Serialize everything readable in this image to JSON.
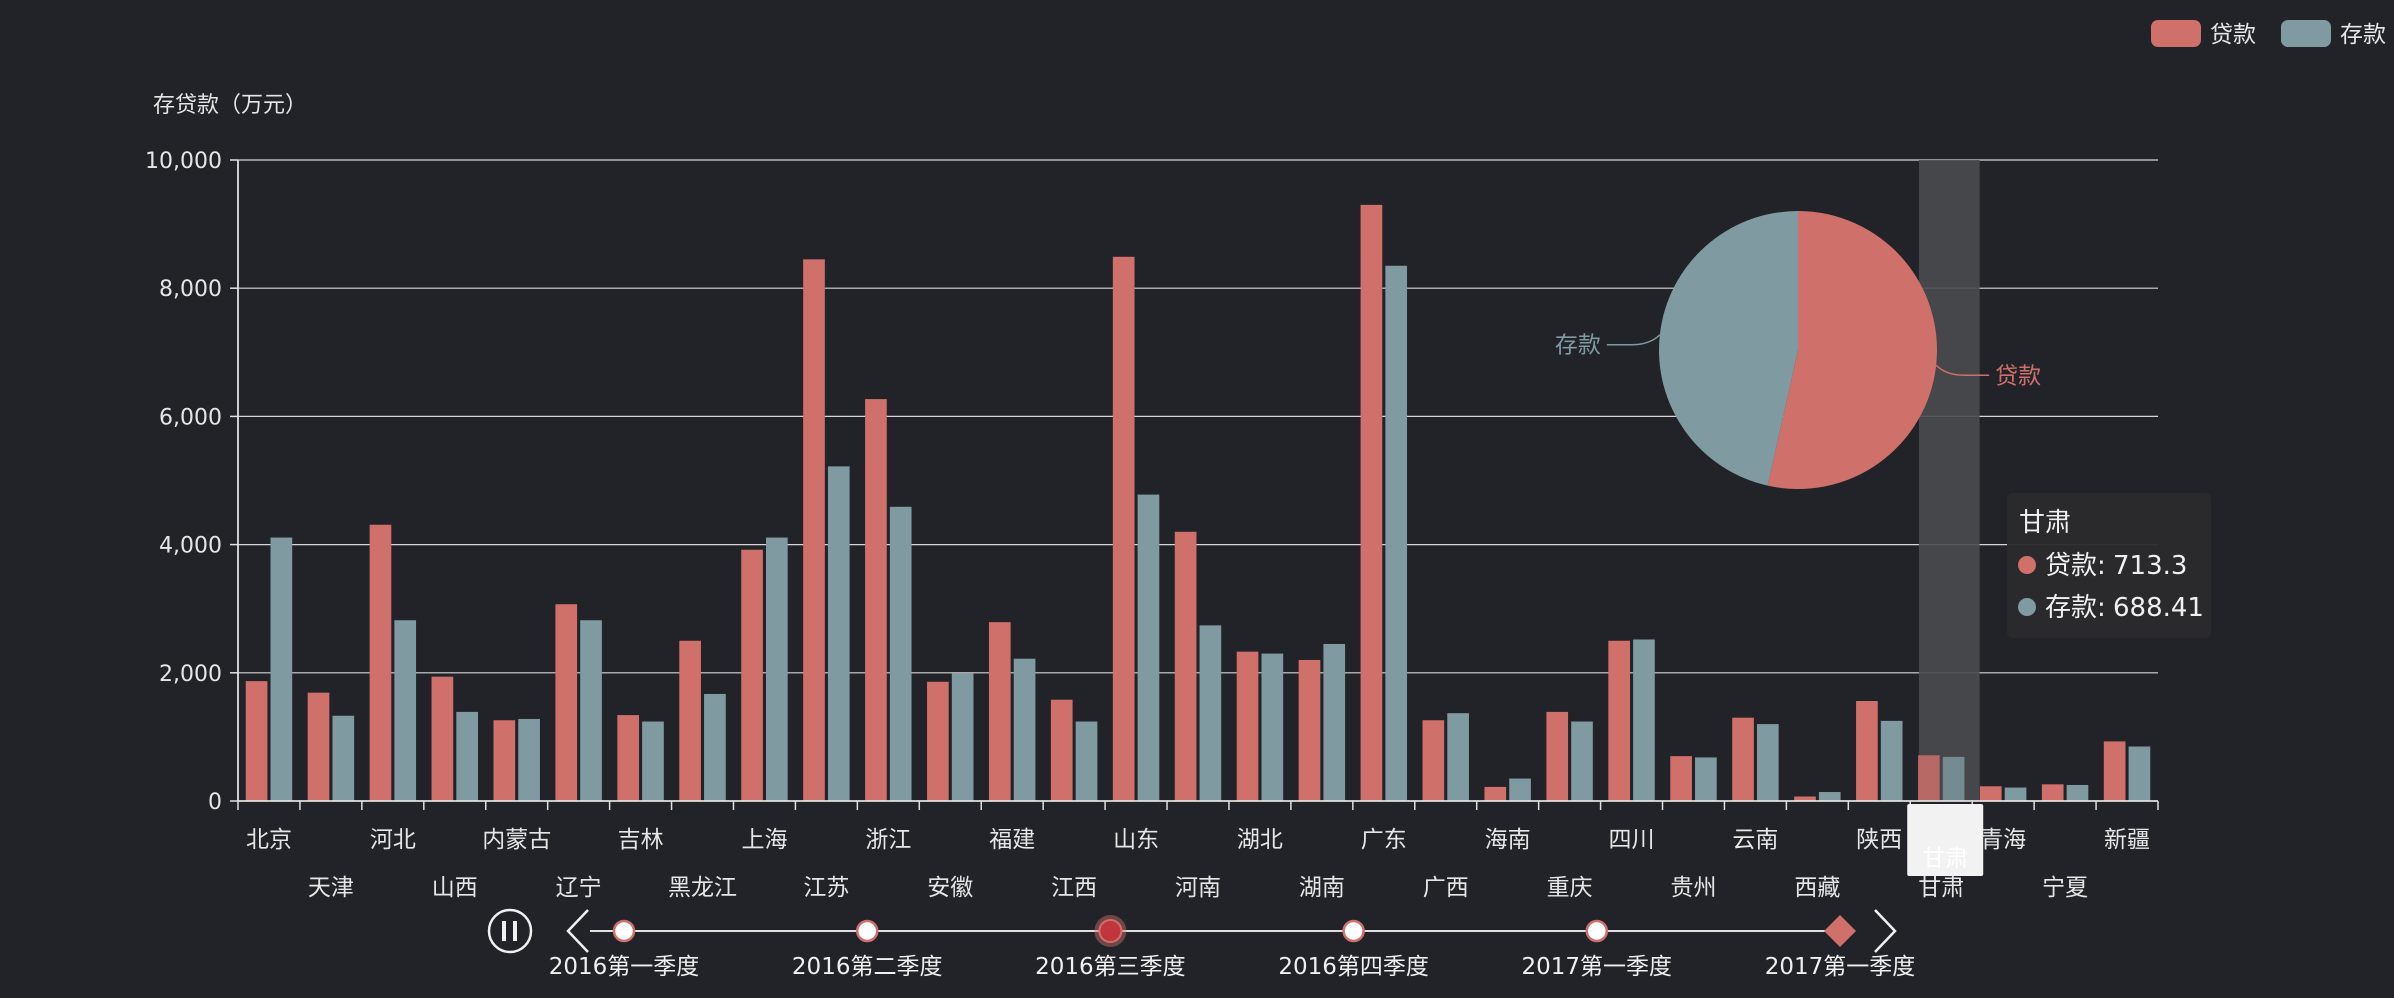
{
  "chart_data": [
    {
      "type": "bar",
      "ylabel": "存贷款（万元）",
      "ylim": [
        0,
        10000
      ],
      "yticks": [
        0,
        2000,
        4000,
        6000,
        8000,
        10000
      ],
      "ytick_labels": [
        "0",
        "2,000",
        "4,000",
        "6,000",
        "8,000",
        "10,000"
      ],
      "categories": [
        "北京",
        "天津",
        "河北",
        "山西",
        "内蒙古",
        "辽宁",
        "吉林",
        "黑龙江",
        "上海",
        "江苏",
        "浙江",
        "安徽",
        "福建",
        "江西",
        "山东",
        "河南",
        "湖北",
        "湖南",
        "广东",
        "广西",
        "海南",
        "重庆",
        "四川",
        "贵州",
        "云南",
        "西藏",
        "陕西",
        "甘肃",
        "青海",
        "宁夏",
        "新疆"
      ],
      "series": [
        {
          "name": "贷款",
          "color": "#d0706b",
          "values": [
            1870,
            1690,
            4310,
            1940,
            1260,
            3070,
            1340,
            2500,
            3920,
            8450,
            6270,
            1860,
            2790,
            1580,
            8490,
            4200,
            2330,
            2200,
            9300,
            1260,
            220,
            1390,
            2500,
            700,
            1300,
            70,
            1560,
            713.3,
            230,
            260,
            930
          ]
        },
        {
          "name": "存款",
          "color": "#7f9ba1",
          "values": [
            4110,
            1330,
            2820,
            1390,
            1280,
            2820,
            1240,
            1670,
            4110,
            5220,
            4590,
            1990,
            2220,
            1240,
            4780,
            2740,
            2300,
            2450,
            8350,
            1370,
            350,
            1240,
            2520,
            680,
            1200,
            140,
            1250,
            688.41,
            210,
            250,
            850
          ]
        }
      ],
      "legend": {
        "position": "top-right",
        "items": [
          "贷款",
          "存款"
        ]
      },
      "grid": true,
      "highlight": {
        "category": "甘肃",
        "tooltip": {
          "title": "甘肃",
          "rows": [
            {
              "label": "贷款",
              "value": "713.3",
              "color": "#d0706b"
            },
            {
              "label": "存款",
              "value": "688.41",
              "color": "#7f9ba1"
            }
          ]
        }
      }
    },
    {
      "type": "pie",
      "slices": [
        {
          "name": "贷款",
          "value": 53.5,
          "color": "#d0706b"
        },
        {
          "name": "存款",
          "value": 46.5,
          "color": "#7f9ba1"
        }
      ]
    }
  ],
  "timeline": {
    "items": [
      "2016第一季度",
      "2016第二季度",
      "2016第三季度",
      "2016第四季度",
      "2017第一季度",
      "2017第一季度"
    ],
    "current": "2016第三季度",
    "controls": [
      "play-pause",
      "prev",
      "next"
    ]
  },
  "colors": {
    "background": "#212328",
    "loan": "#d0706b",
    "deposit": "#7f9ba1",
    "grid": "#d6d6d6",
    "text": "#e6e6e6"
  }
}
